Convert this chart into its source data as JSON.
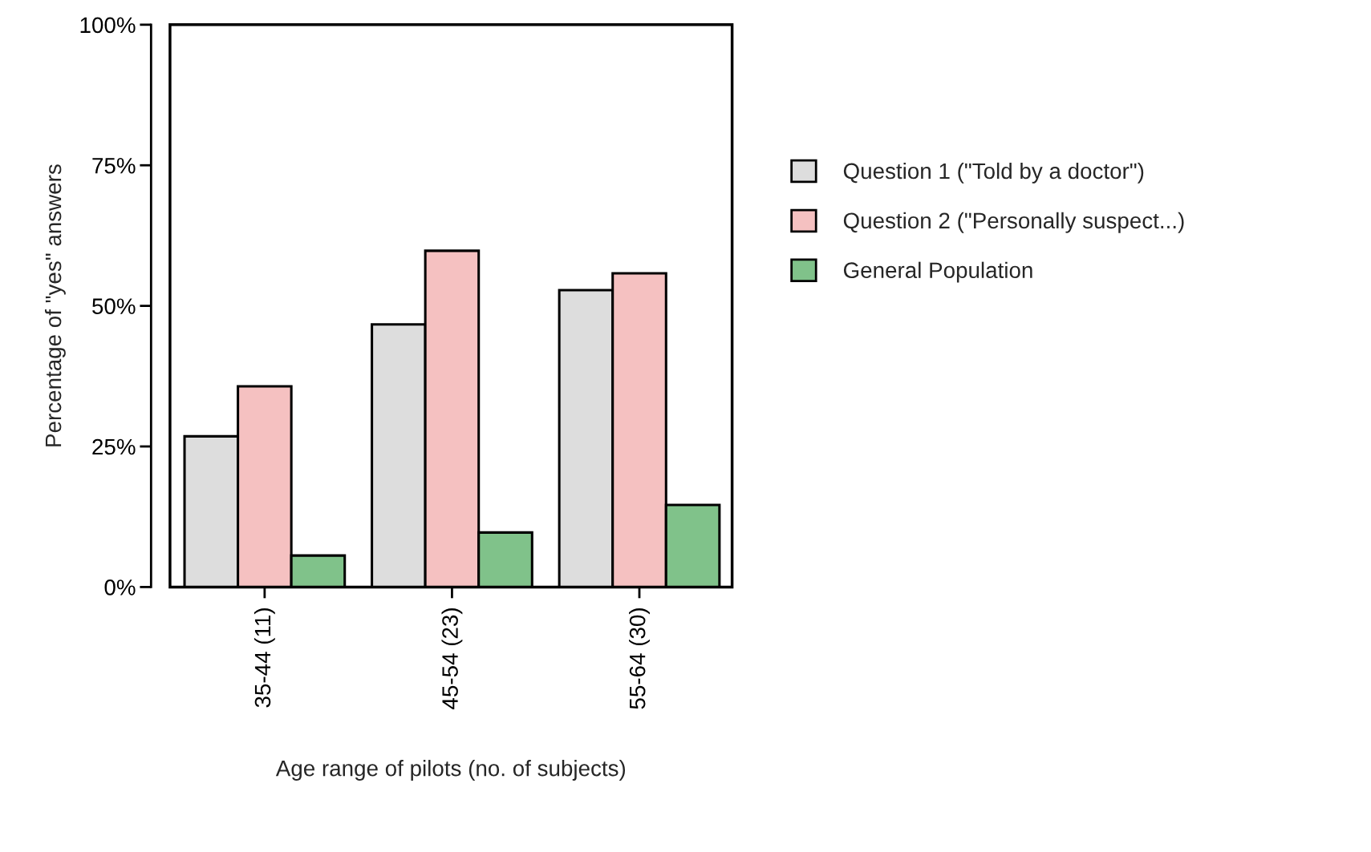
{
  "chart_data": {
    "type": "bar",
    "xlabel": "Age range of pilots (no. of subjects)",
    "ylabel": "Percentage of \"yes\" answers",
    "categories": [
      "35-44 (11)",
      "45-54 (23)",
      "55-64 (30)"
    ],
    "series": [
      {
        "name": "Question 1 (\"Told by a doctor\")",
        "color": "#dddddd",
        "values": [
          26.8,
          46.7,
          52.8
        ]
      },
      {
        "name": "Question 2 (\"Personally suspect...)",
        "color": "#f5c1c1",
        "values": [
          35.7,
          59.8,
          55.8
        ]
      },
      {
        "name": "General Population",
        "color": "#80c28a",
        "values": [
          5.6,
          9.7,
          14.6
        ]
      }
    ],
    "ylim": [
      0,
      100
    ],
    "yticks": [
      {
        "value": 0,
        "label": "0%"
      },
      {
        "value": 25,
        "label": "25%"
      },
      {
        "value": 50,
        "label": "50%"
      },
      {
        "value": 75,
        "label": "75%"
      },
      {
        "value": 100,
        "label": "100%"
      }
    ],
    "grid": false,
    "legend": "right"
  }
}
